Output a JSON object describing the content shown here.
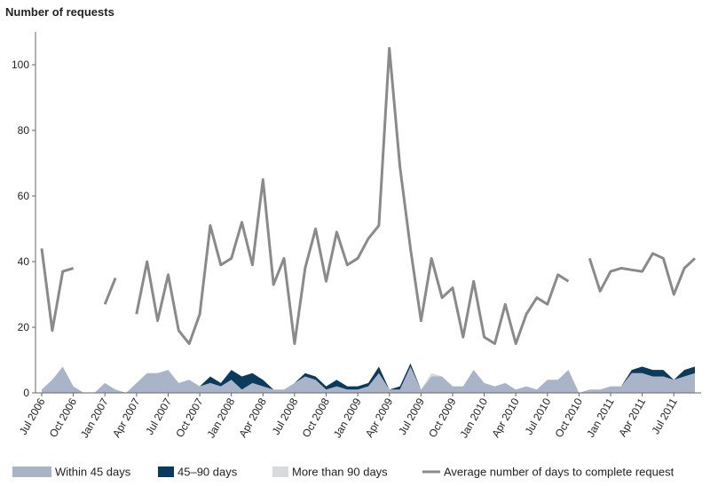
{
  "chart_data": {
    "type": "line",
    "ylabel": "Number of requests",
    "ylim": [
      0,
      110
    ],
    "yticks": [
      0,
      20,
      40,
      60,
      80,
      100
    ],
    "x": [
      "Jul 2006",
      "Aug 2006",
      "Sep 2006",
      "Oct 2006",
      "Nov 2006",
      "Dec 2006",
      "Jan 2007",
      "Feb 2007",
      "Mar 2007",
      "Apr 2007",
      "May 2007",
      "Jun 2007",
      "Jul 2007",
      "Aug 2007",
      "Sep 2007",
      "Oct 2007",
      "Nov 2007",
      "Dec 2007",
      "Jan 2008",
      "Feb 2008",
      "Mar 2008",
      "Apr 2008",
      "May 2008",
      "Jun 2008",
      "Jul 2008",
      "Aug 2008",
      "Sep 2008",
      "Oct 2008",
      "Nov 2008",
      "Dec 2008",
      "Jan 2009",
      "Feb 2009",
      "Mar 2009",
      "Apr 2009",
      "May 2009",
      "Jun 2009",
      "Jul 2009",
      "Aug 2009",
      "Sep 2009",
      "Oct 2009",
      "Nov 2009",
      "Dec 2009",
      "Jan 2010",
      "Feb 2010",
      "Mar 2010",
      "Apr 2010",
      "May 2010",
      "Jun 2010",
      "Jul 2010",
      "Aug 2010",
      "Sep 2010",
      "Oct 2010",
      "Nov 2010",
      "Dec 2010",
      "Jan 2011",
      "Feb 2011",
      "Mar 2011",
      "Apr 2011",
      "May 2011",
      "Jun 2011",
      "Jul 2011",
      "Aug 2011",
      "Sep 2011"
    ],
    "xtick_labels": [
      "Jul 2006",
      "Oct 2006",
      "Jan 2007",
      "Apr 2007",
      "Jul 2007",
      "Oct 2007",
      "Jan 2008",
      "Apr 2008",
      "Jul 2008",
      "Oct 2008",
      "Jan 2009",
      "Apr 2009",
      "Jul 2009",
      "Oct 2009",
      "Jan 2010",
      "Apr 2010",
      "Jul 2010",
      "Oct 2010",
      "Jan 2011",
      "Apr 2011",
      "Jul 2011"
    ],
    "series": [
      {
        "name": "Within 45 days",
        "kind": "stacked-area",
        "color": "#a9b4c8",
        "values": [
          1,
          4,
          8,
          2,
          0,
          0,
          3,
          1,
          0,
          3,
          6,
          6,
          7,
          3,
          4,
          2,
          3,
          2,
          4,
          1,
          3,
          2,
          1,
          1,
          3,
          5,
          4,
          1,
          2,
          1,
          1,
          2,
          6,
          1,
          1,
          8,
          1,
          5,
          5,
          2,
          2,
          7,
          3,
          2,
          3,
          1,
          2,
          1,
          4,
          4,
          7,
          0,
          1,
          1,
          2,
          2,
          6,
          6,
          5,
          5,
          4,
          5,
          6
        ]
      },
      {
        "name": "45–90 days",
        "kind": "stacked-area",
        "color": "#0a3a5e",
        "values": [
          0,
          0,
          0,
          0,
          0,
          0,
          0,
          0,
          0,
          0,
          0,
          0,
          0,
          0,
          0,
          0,
          2,
          1,
          3,
          4,
          3,
          2,
          0,
          0,
          0,
          1,
          1,
          1,
          2,
          1,
          1,
          1,
          2,
          0,
          1,
          1,
          0,
          0,
          0,
          0,
          0,
          0,
          0,
          0,
          0,
          0,
          0,
          0,
          0,
          0,
          0,
          0,
          0,
          0,
          0,
          0,
          1,
          2,
          2,
          2,
          0,
          2,
          2
        ]
      },
      {
        "name": "More than 90 days",
        "kind": "stacked-area",
        "color": "#d9dadb",
        "values": [
          0,
          0,
          0,
          0,
          0,
          0,
          0,
          0,
          0,
          0,
          0,
          0,
          0,
          0,
          0,
          0,
          0,
          0,
          0,
          0,
          0,
          0,
          0,
          0,
          0,
          0,
          0,
          0,
          0,
          0,
          0,
          0,
          0,
          0,
          0,
          0,
          0,
          1,
          0,
          0,
          0,
          0,
          0,
          0,
          0,
          0,
          0,
          0,
          0,
          0,
          0,
          0,
          0,
          0,
          0,
          0,
          0,
          0,
          0,
          0,
          0,
          0,
          0
        ]
      },
      {
        "name": "Average number of days to complete request",
        "kind": "line",
        "color": "#8a8a8a",
        "values": [
          44,
          19,
          37,
          38,
          null,
          null,
          27,
          35,
          null,
          24,
          40,
          22,
          36,
          19,
          15,
          24,
          51,
          39,
          41,
          52,
          39,
          65,
          33,
          41,
          15,
          38,
          50,
          34,
          49,
          39,
          41,
          47,
          51,
          105,
          69,
          44,
          22,
          41,
          29,
          32,
          17,
          34,
          17,
          15,
          27,
          15,
          24,
          29,
          27,
          36,
          34,
          null,
          41,
          31,
          37,
          38,
          37.5,
          37,
          42.5,
          41,
          30,
          38,
          41
        ]
      }
    ],
    "grid": false,
    "legend_position": "bottom"
  }
}
